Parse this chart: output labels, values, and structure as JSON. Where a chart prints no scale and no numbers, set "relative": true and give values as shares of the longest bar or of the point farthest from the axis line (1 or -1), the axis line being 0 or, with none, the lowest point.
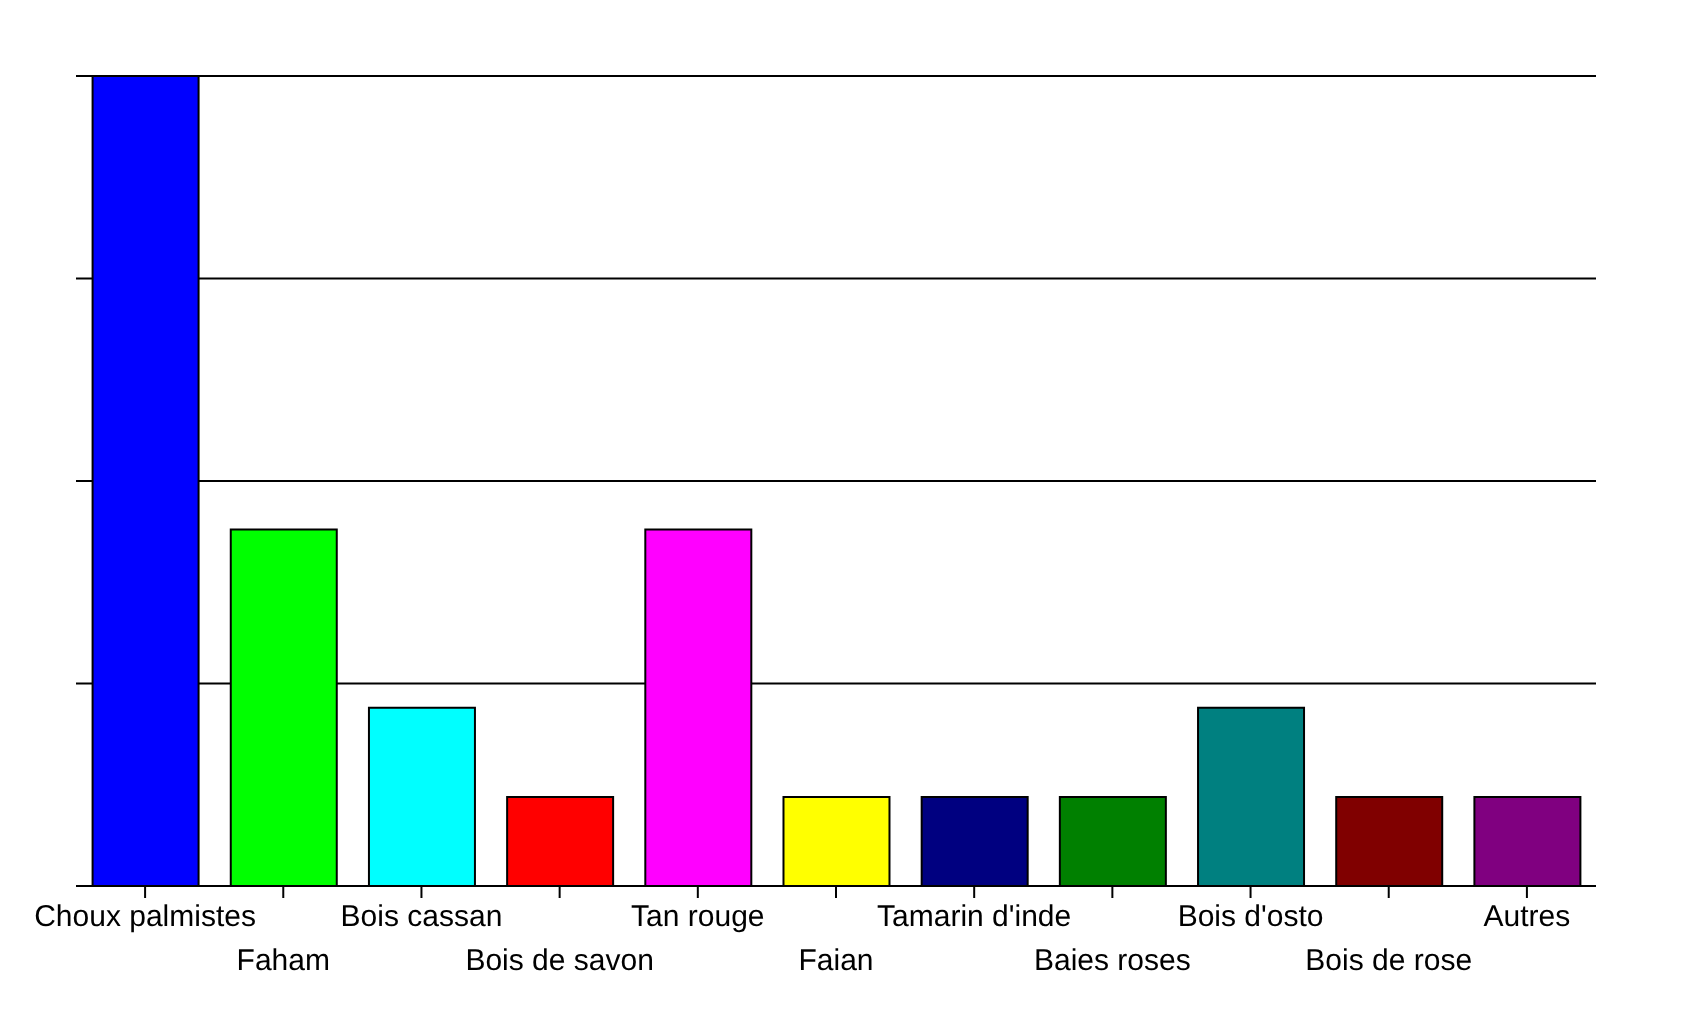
{
  "chart_data": {
    "type": "bar",
    "relative": true,
    "grid": "y",
    "categories": [
      "Choux palmistes",
      "Faham",
      "Bois cassan",
      "Bois de savon",
      "Tan rouge",
      "Faian",
      "Tamarin d'inde",
      "Baies roses",
      "Bois d'osto",
      "Bois de rose",
      "Autres"
    ],
    "values": [
      1,
      0.44,
      0.22,
      0.11,
      0.44,
      0.11,
      0.11,
      0.11,
      0.22,
      0.11,
      0.11
    ],
    "colors": [
      "#0000ff",
      "#00ff00",
      "#00ffff",
      "#ff0000",
      "#ff00ff",
      "#ffff00",
      "#000080",
      "#008000",
      "#008080",
      "#800000",
      "#800080"
    ]
  }
}
